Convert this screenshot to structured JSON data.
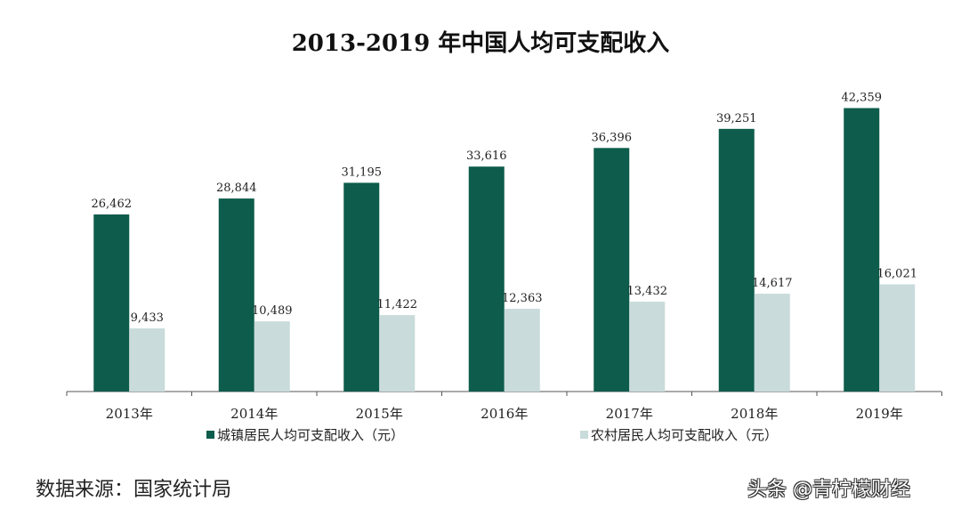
{
  "chart_data": {
    "type": "bar",
    "title": "2013-2019 年中国人均可支配收入",
    "categories": [
      "2013年",
      "2014年",
      "2015年",
      "2016年",
      "2017年",
      "2018年",
      "2019年"
    ],
    "series": [
      {
        "name": "城镇居民人均可支配收入（元）",
        "color": "#0d5c4c",
        "values": [
          26462,
          28844,
          31195,
          33616,
          36396,
          39251,
          42359
        ],
        "labels": [
          "26,462",
          "28,844",
          "31,195",
          "33,616",
          "36,396",
          "39,251",
          "42,359"
        ]
      },
      {
        "name": "农村居民人均可支配收入（元）",
        "color": "#c9dbdb",
        "values": [
          9433,
          10489,
          11422,
          12363,
          13432,
          14617,
          16021
        ],
        "labels": [
          "9,433",
          "10,489",
          "11,422",
          "12,363",
          "13,432",
          "14,617",
          "16,021"
        ]
      }
    ],
    "ylim": [
      0,
      45000
    ],
    "grid": false,
    "legend": "bottom"
  },
  "source": "数据来源：国家统计局",
  "watermark": "头条 @青柠檬财经"
}
